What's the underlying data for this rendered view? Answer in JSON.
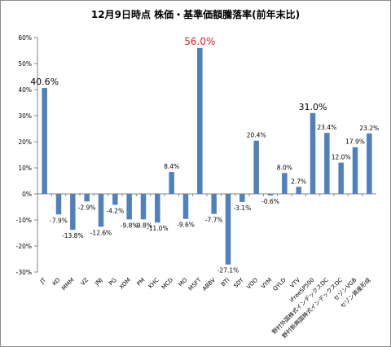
{
  "chart_data": {
    "type": "bar",
    "title": "12月9日時点 株価・基準価額騰落率(前年末比)",
    "xlabel": "",
    "ylabel": "",
    "ylim": [
      -30,
      60
    ],
    "yticks": [
      "60%",
      "50%",
      "40%",
      "30%",
      "20%",
      "10%",
      "0%",
      "-10%",
      "-20%",
      "-30%"
    ],
    "grid": false,
    "legend": "none",
    "bar_color": "#4f81bd",
    "highlight_color": "#e0201c",
    "categories": [
      "JT",
      "KO",
      "MMM",
      "VZ",
      "JNJ",
      "PG",
      "XOM",
      "PM",
      "KHC",
      "MCD",
      "MO",
      "MSFT",
      "ABBV",
      "BTI",
      "SDY",
      "VOO",
      "VYM",
      "QYLD",
      "VTV",
      "iFreeSP500",
      "野村外国株式インデックスDC",
      "野村新興国株式インデックスDC",
      "セゾンVGB",
      "セゾン資産形成"
    ],
    "values": [
      40.6,
      -7.9,
      -13.8,
      -2.9,
      -12.6,
      -4.2,
      -9.8,
      -9.8,
      -11.0,
      8.4,
      -9.6,
      56.0,
      -7.7,
      -27.1,
      -3.1,
      20.4,
      -0.6,
      8.0,
      2.7,
      31.0,
      23.4,
      12.0,
      17.9,
      23.2
    ],
    "labels": [
      "40.6%",
      "-7.9%",
      "-13.8%",
      "-2.9%",
      "-12.6%",
      "-4.2%",
      "-9.8%",
      "-9.8%",
      "-11.0%",
      "8.4%",
      "-9.6%",
      "56.0%",
      "-7.7%",
      "-27.1%",
      "-3.1%",
      "20.4%",
      "-0.6%",
      "8.0%",
      "2.7%",
      "31.0%",
      "23.4%",
      "12.0%",
      "17.9%",
      "23.2%"
    ]
  }
}
